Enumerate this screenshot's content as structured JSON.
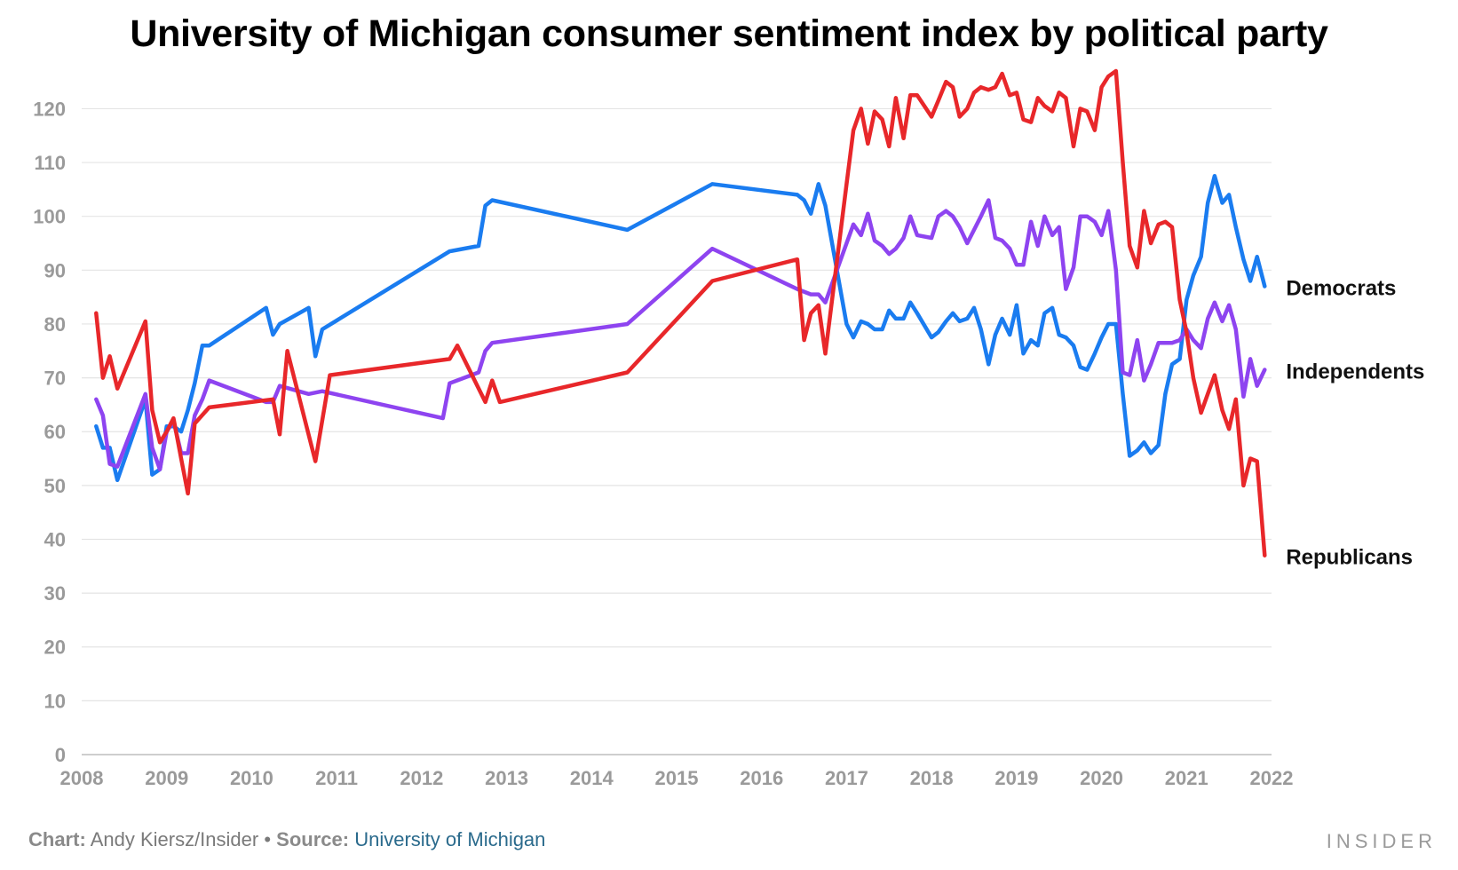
{
  "chart_data": {
    "type": "line",
    "title": "University of Michigan consumer sentiment index by political party",
    "ylim": [
      0,
      127
    ],
    "yticks": [
      "0",
      "10",
      "20",
      "30",
      "40",
      "50",
      "60",
      "70",
      "80",
      "90",
      "100",
      "110",
      "120"
    ],
    "xlim": [
      2008,
      2022
    ],
    "xticks": [
      "2008",
      "2009",
      "2010",
      "2011",
      "2012",
      "2013",
      "2014",
      "2015",
      "2016",
      "2017",
      "2018",
      "2019",
      "2020",
      "2021",
      "2022"
    ],
    "grid": true,
    "legend": "direct labels at right end of lines",
    "series": [
      {
        "name": "Democrats",
        "color": "#1a7cf0",
        "points": [
          [
            2008.17,
            61
          ],
          [
            2008.25,
            57
          ],
          [
            2008.33,
            57
          ],
          [
            2008.42,
            51
          ],
          [
            2008.75,
            66
          ],
          [
            2008.83,
            52
          ],
          [
            2008.92,
            53
          ],
          [
            2009.0,
            61
          ],
          [
            2009.08,
            61
          ],
          [
            2009.17,
            60
          ],
          [
            2009.25,
            64
          ],
          [
            2009.33,
            69
          ],
          [
            2009.42,
            76
          ],
          [
            2009.5,
            76
          ],
          [
            2010.17,
            83
          ],
          [
            2010.25,
            78
          ],
          [
            2010.33,
            80
          ],
          [
            2010.67,
            83
          ],
          [
            2010.75,
            74
          ],
          [
            2010.83,
            79
          ],
          [
            2012.33,
            93.5
          ],
          [
            2012.67,
            94.5
          ],
          [
            2012.75,
            102
          ],
          [
            2012.83,
            103
          ],
          [
            2014.42,
            97.5
          ],
          [
            2015.42,
            106
          ],
          [
            2016.42,
            104
          ],
          [
            2016.5,
            103
          ],
          [
            2016.58,
            100.5
          ],
          [
            2016.67,
            106
          ],
          [
            2016.75,
            102
          ],
          [
            2017.0,
            80
          ],
          [
            2017.08,
            77.5
          ],
          [
            2017.17,
            80.5
          ],
          [
            2017.25,
            80
          ],
          [
            2017.33,
            79
          ],
          [
            2017.42,
            79
          ],
          [
            2017.5,
            82.5
          ],
          [
            2017.58,
            81
          ],
          [
            2017.67,
            81
          ],
          [
            2017.75,
            84
          ],
          [
            2017.83,
            82
          ],
          [
            2018.0,
            77.5
          ],
          [
            2018.08,
            78.5
          ],
          [
            2018.17,
            80.5
          ],
          [
            2018.25,
            82
          ],
          [
            2018.33,
            80.5
          ],
          [
            2018.42,
            81
          ],
          [
            2018.5,
            83
          ],
          [
            2018.58,
            79
          ],
          [
            2018.67,
            72.5
          ],
          [
            2018.75,
            78
          ],
          [
            2018.83,
            81
          ],
          [
            2018.92,
            78
          ],
          [
            2019.0,
            83.5
          ],
          [
            2019.08,
            74.5
          ],
          [
            2019.17,
            77
          ],
          [
            2019.25,
            76
          ],
          [
            2019.33,
            82
          ],
          [
            2019.42,
            83
          ],
          [
            2019.5,
            78
          ],
          [
            2019.58,
            77.5
          ],
          [
            2019.67,
            76
          ],
          [
            2019.75,
            72
          ],
          [
            2019.83,
            71.5
          ],
          [
            2019.92,
            74.5
          ],
          [
            2020.0,
            77.5
          ],
          [
            2020.08,
            80
          ],
          [
            2020.17,
            80
          ],
          [
            2020.25,
            67
          ],
          [
            2020.33,
            55.5
          ],
          [
            2020.42,
            56.5
          ],
          [
            2020.5,
            58
          ],
          [
            2020.58,
            56
          ],
          [
            2020.67,
            57.5
          ],
          [
            2020.75,
            67
          ],
          [
            2020.83,
            72.5
          ],
          [
            2020.92,
            73.5
          ],
          [
            2021.0,
            84.5
          ],
          [
            2021.08,
            89
          ],
          [
            2021.17,
            92.5
          ],
          [
            2021.25,
            102.5
          ],
          [
            2021.33,
            107.5
          ],
          [
            2021.42,
            102.5
          ],
          [
            2021.5,
            104
          ],
          [
            2021.58,
            98
          ],
          [
            2021.67,
            92
          ],
          [
            2021.75,
            88
          ],
          [
            2021.83,
            92.5
          ],
          [
            2021.92,
            87
          ]
        ]
      },
      {
        "name": "Independents",
        "color": "#8e44f0",
        "points": [
          [
            2008.17,
            66
          ],
          [
            2008.25,
            63
          ],
          [
            2008.33,
            54
          ],
          [
            2008.42,
            53.5
          ],
          [
            2008.75,
            67
          ],
          [
            2008.83,
            57
          ],
          [
            2008.92,
            53
          ],
          [
            2009.0,
            60
          ],
          [
            2009.08,
            62
          ],
          [
            2009.17,
            56
          ],
          [
            2009.25,
            56
          ],
          [
            2009.33,
            63
          ],
          [
            2009.42,
            66
          ],
          [
            2009.5,
            69.5
          ],
          [
            2010.17,
            65.5
          ],
          [
            2010.25,
            65.5
          ],
          [
            2010.33,
            68.5
          ],
          [
            2010.67,
            67
          ],
          [
            2010.83,
            67.5
          ],
          [
            2012.25,
            62.5
          ],
          [
            2012.33,
            69
          ],
          [
            2012.67,
            71
          ],
          [
            2012.75,
            75
          ],
          [
            2012.83,
            76.5
          ],
          [
            2014.42,
            80
          ],
          [
            2015.42,
            94
          ],
          [
            2016.42,
            86.5
          ],
          [
            2016.58,
            85.5
          ],
          [
            2016.67,
            85.5
          ],
          [
            2016.75,
            84
          ],
          [
            2017.0,
            95
          ],
          [
            2017.08,
            98.5
          ],
          [
            2017.17,
            96.5
          ],
          [
            2017.25,
            100.5
          ],
          [
            2017.33,
            95.5
          ],
          [
            2017.42,
            94.5
          ],
          [
            2017.5,
            93
          ],
          [
            2017.58,
            94
          ],
          [
            2017.67,
            96
          ],
          [
            2017.75,
            100
          ],
          [
            2017.83,
            96.5
          ],
          [
            2018.0,
            96
          ],
          [
            2018.08,
            100
          ],
          [
            2018.17,
            101
          ],
          [
            2018.25,
            100
          ],
          [
            2018.33,
            98
          ],
          [
            2018.42,
            95
          ],
          [
            2018.5,
            97.5
          ],
          [
            2018.58,
            100
          ],
          [
            2018.67,
            103
          ],
          [
            2018.75,
            96
          ],
          [
            2018.83,
            95.5
          ],
          [
            2018.92,
            94
          ],
          [
            2019.0,
            91
          ],
          [
            2019.08,
            91
          ],
          [
            2019.17,
            99
          ],
          [
            2019.25,
            94.5
          ],
          [
            2019.33,
            100
          ],
          [
            2019.42,
            96.5
          ],
          [
            2019.5,
            98
          ],
          [
            2019.58,
            86.5
          ],
          [
            2019.67,
            90.5
          ],
          [
            2019.75,
            100
          ],
          [
            2019.83,
            100
          ],
          [
            2019.92,
            99
          ],
          [
            2020.0,
            96.5
          ],
          [
            2020.08,
            101
          ],
          [
            2020.17,
            90
          ],
          [
            2020.25,
            71
          ],
          [
            2020.33,
            70.5
          ],
          [
            2020.42,
            77
          ],
          [
            2020.5,
            69.5
          ],
          [
            2020.58,
            72.5
          ],
          [
            2020.67,
            76.5
          ],
          [
            2020.75,
            76.5
          ],
          [
            2020.83,
            76.5
          ],
          [
            2020.92,
            77
          ],
          [
            2021.0,
            79
          ],
          [
            2021.08,
            77
          ],
          [
            2021.17,
            75.5
          ],
          [
            2021.25,
            81
          ],
          [
            2021.33,
            84
          ],
          [
            2021.42,
            80.5
          ],
          [
            2021.5,
            83.5
          ],
          [
            2021.58,
            79
          ],
          [
            2021.67,
            66.5
          ],
          [
            2021.75,
            73.5
          ],
          [
            2021.83,
            68.5
          ],
          [
            2021.92,
            71.5
          ]
        ]
      },
      {
        "name": "Republicans",
        "color": "#e8272a",
        "points": [
          [
            2008.17,
            82
          ],
          [
            2008.25,
            70
          ],
          [
            2008.33,
            74
          ],
          [
            2008.42,
            68
          ],
          [
            2008.75,
            80.5
          ],
          [
            2008.83,
            64
          ],
          [
            2008.92,
            58
          ],
          [
            2009.0,
            60
          ],
          [
            2009.08,
            62.5
          ],
          [
            2009.17,
            55
          ],
          [
            2009.25,
            48.5
          ],
          [
            2009.33,
            61.5
          ],
          [
            2009.5,
            64.5
          ],
          [
            2010.25,
            66
          ],
          [
            2010.33,
            59.5
          ],
          [
            2010.42,
            75
          ],
          [
            2010.75,
            54.5
          ],
          [
            2010.92,
            70.5
          ],
          [
            2012.33,
            73.5
          ],
          [
            2012.42,
            76
          ],
          [
            2012.75,
            65.5
          ],
          [
            2012.83,
            69.5
          ],
          [
            2012.92,
            65.5
          ],
          [
            2014.42,
            71
          ],
          [
            2015.42,
            88
          ],
          [
            2016.42,
            92
          ],
          [
            2016.5,
            77
          ],
          [
            2016.58,
            82
          ],
          [
            2016.67,
            83.5
          ],
          [
            2016.75,
            74.5
          ],
          [
            2017.0,
            106
          ],
          [
            2017.08,
            116
          ],
          [
            2017.17,
            120
          ],
          [
            2017.25,
            113.5
          ],
          [
            2017.33,
            119.5
          ],
          [
            2017.42,
            118
          ],
          [
            2017.5,
            113
          ],
          [
            2017.58,
            122
          ],
          [
            2017.67,
            114.5
          ],
          [
            2017.75,
            122.5
          ],
          [
            2017.83,
            122.5
          ],
          [
            2018.0,
            118.5
          ],
          [
            2018.08,
            121.5
          ],
          [
            2018.17,
            125
          ],
          [
            2018.25,
            124
          ],
          [
            2018.33,
            118.5
          ],
          [
            2018.42,
            120
          ],
          [
            2018.5,
            123
          ],
          [
            2018.58,
            124
          ],
          [
            2018.67,
            123.5
          ],
          [
            2018.75,
            124
          ],
          [
            2018.83,
            126.5
          ],
          [
            2018.92,
            122.5
          ],
          [
            2019.0,
            123
          ],
          [
            2019.08,
            118
          ],
          [
            2019.17,
            117.5
          ],
          [
            2019.25,
            122
          ],
          [
            2019.33,
            120.5
          ],
          [
            2019.42,
            119.5
          ],
          [
            2019.5,
            123
          ],
          [
            2019.58,
            122
          ],
          [
            2019.67,
            113
          ],
          [
            2019.75,
            120
          ],
          [
            2019.83,
            119.5
          ],
          [
            2019.92,
            116
          ],
          [
            2020.0,
            124
          ],
          [
            2020.08,
            126
          ],
          [
            2020.17,
            127
          ],
          [
            2020.25,
            110
          ],
          [
            2020.33,
            94.5
          ],
          [
            2020.42,
            90.5
          ],
          [
            2020.5,
            101
          ],
          [
            2020.58,
            95
          ],
          [
            2020.67,
            98.5
          ],
          [
            2020.75,
            99
          ],
          [
            2020.83,
            98
          ],
          [
            2020.92,
            84.5
          ],
          [
            2021.0,
            78.5
          ],
          [
            2021.08,
            70
          ],
          [
            2021.17,
            63.5
          ],
          [
            2021.25,
            67
          ],
          [
            2021.33,
            70.5
          ],
          [
            2021.42,
            64
          ],
          [
            2021.5,
            60.5
          ],
          [
            2021.58,
            66
          ],
          [
            2021.67,
            50
          ],
          [
            2021.75,
            55
          ],
          [
            2021.83,
            54.5
          ],
          [
            2021.92,
            37
          ]
        ]
      }
    ]
  },
  "footer": {
    "chart_label": "Chart:",
    "chart_author": "Andy Kiersz/Insider",
    "separator": "•",
    "source_label": "Source:",
    "source_name": "University of Michigan"
  },
  "brand": "INSIDER"
}
